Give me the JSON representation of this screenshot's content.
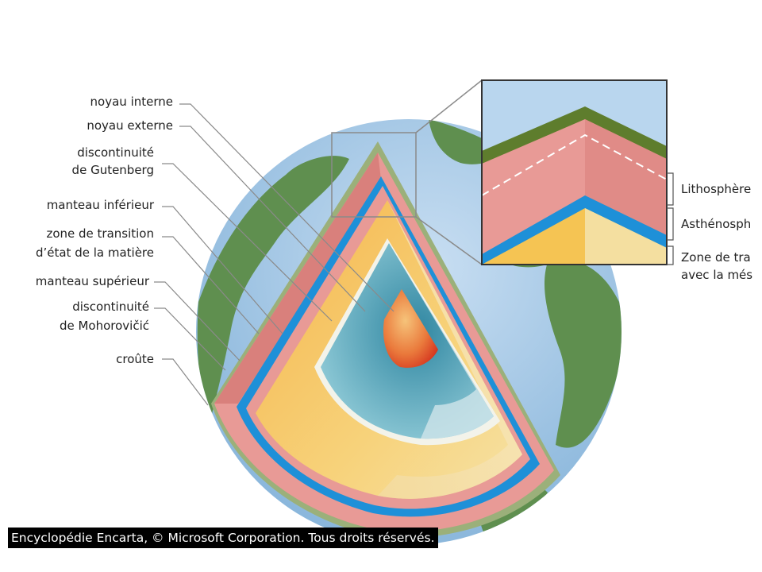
{
  "labels": {
    "inner_core": "noyau interne",
    "outer_core": "noyau externe",
    "gutenberg_1": "discontinuité",
    "gutenberg_2": "de Gutenberg",
    "lower_mantle": "manteau inférieur",
    "transition_1": "zone de transition",
    "transition_2": "d’état de la matière",
    "upper_mantle": "manteau supérieur",
    "moho_1": "discontinuité",
    "moho_2": "de Mohorovičić",
    "crust": "croûte"
  },
  "inset_labels": {
    "lithosphere": "Lithosphère",
    "asthenosphere": "Asthénosph",
    "transition_1": "Zone de tra",
    "transition_2": "avec la més"
  },
  "credit": "Encyclopédie Encarta, © Microsoft Corporation. Tous droits réservés.",
  "colors": {
    "ocean": "#9cc4e4",
    "land": "#5f8f4f",
    "crust": "#e89a96",
    "blue_band": "#1e90d8",
    "mantle": "#f7c95c",
    "outer_core": "#5aa7b8",
    "inner_core": "#e0552a"
  }
}
